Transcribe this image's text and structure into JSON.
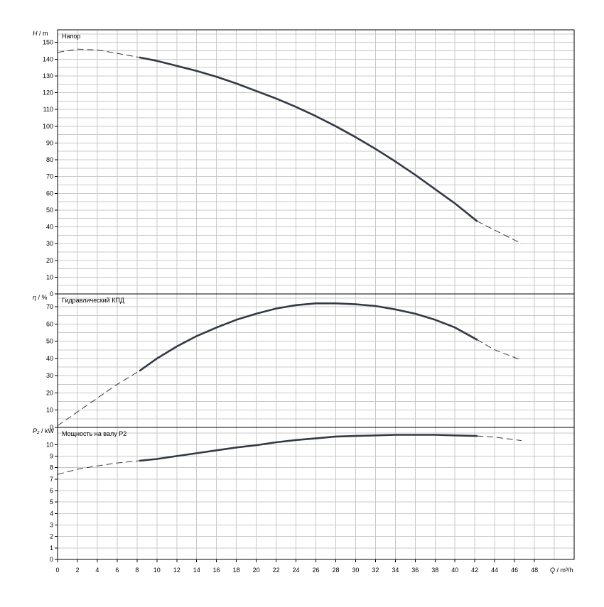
{
  "chart_data": {
    "type": "line",
    "x_axis": {
      "label_symbol": "Q",
      "label_unit": "m³/h",
      "range": [
        0,
        52
      ],
      "ticks": [
        0,
        2,
        4,
        6,
        8,
        10,
        12,
        14,
        16,
        18,
        20,
        22,
        24,
        26,
        28,
        30,
        32,
        34,
        36,
        38,
        40,
        42,
        44,
        46,
        48
      ]
    },
    "panels": [
      {
        "id": "head",
        "title": "Напор",
        "y_symbol": "H",
        "y_unit": "m",
        "ylim": [
          0,
          157.5
        ],
        "yticks": [
          0,
          10,
          20,
          30,
          40,
          50,
          60,
          70,
          80,
          90,
          100,
          110,
          120,
          130,
          140,
          150
        ],
        "grid_step": 5,
        "operating_range": [
          8.3,
          42.2
        ],
        "series": [
          {
            "x": [
              0,
              2,
              4,
              6,
              8.3,
              10,
              12,
              14,
              16,
              18,
              20,
              22,
              24,
              26,
              28,
              30,
              32,
              34,
              36,
              38,
              40,
              42.2,
              44,
              46.7
            ],
            "y": [
              144,
              146,
              145.5,
              143.5,
              141,
              139,
              136,
              133,
              129.5,
              125.5,
              121,
              116.5,
              111.5,
              106,
              100,
              93.5,
              86.5,
              79,
              71,
              62.5,
              54,
              43.5,
              38,
              30
            ]
          }
        ]
      },
      {
        "id": "efficiency",
        "title": "Гидравлический КПД",
        "y_symbol": "η",
        "y_unit": "%",
        "ylim": [
          0,
          77.5
        ],
        "yticks": [
          0,
          10,
          20,
          30,
          40,
          50,
          60,
          70
        ],
        "grid_step": 5,
        "operating_range": [
          8.3,
          42.2
        ],
        "series": [
          {
            "x": [
              0,
              2,
              4,
              6,
              8.3,
              10,
              12,
              14,
              16,
              18,
              20,
              22,
              24,
              26,
              28,
              30,
              32,
              34,
              36,
              38,
              40,
              42.2,
              44,
              46.7
            ],
            "y": [
              1,
              9,
              17,
              25,
              33,
              40,
              47,
              53,
              58,
              62.5,
              66,
              69,
              71,
              72,
              72,
              71.5,
              70.5,
              68.5,
              66,
              62.5,
              58,
              51,
              45,
              39
            ]
          }
        ]
      },
      {
        "id": "power",
        "title": "Мощность на валу P2",
        "y_symbol": "P₂",
        "y_unit": "kW",
        "ylim": [
          0,
          11.5
        ],
        "yticks": [
          0,
          1,
          2,
          3,
          4,
          5,
          6,
          7,
          8,
          9,
          10
        ],
        "grid_step": 1,
        "operating_range": [
          8.3,
          42.2
        ],
        "series": [
          {
            "x": [
              0,
              2,
              4,
              6,
              8.3,
              10,
              12,
              14,
              16,
              18,
              20,
              22,
              24,
              26,
              28,
              30,
              32,
              34,
              36,
              38,
              40,
              42.2,
              44,
              46.7
            ],
            "y": [
              7.4,
              7.85,
              8.15,
              8.4,
              8.6,
              8.75,
              9.0,
              9.25,
              9.5,
              9.75,
              9.95,
              10.2,
              10.4,
              10.55,
              10.7,
              10.75,
              10.8,
              10.85,
              10.85,
              10.85,
              10.8,
              10.75,
              10.65,
              10.35
            ]
          }
        ]
      }
    ]
  }
}
